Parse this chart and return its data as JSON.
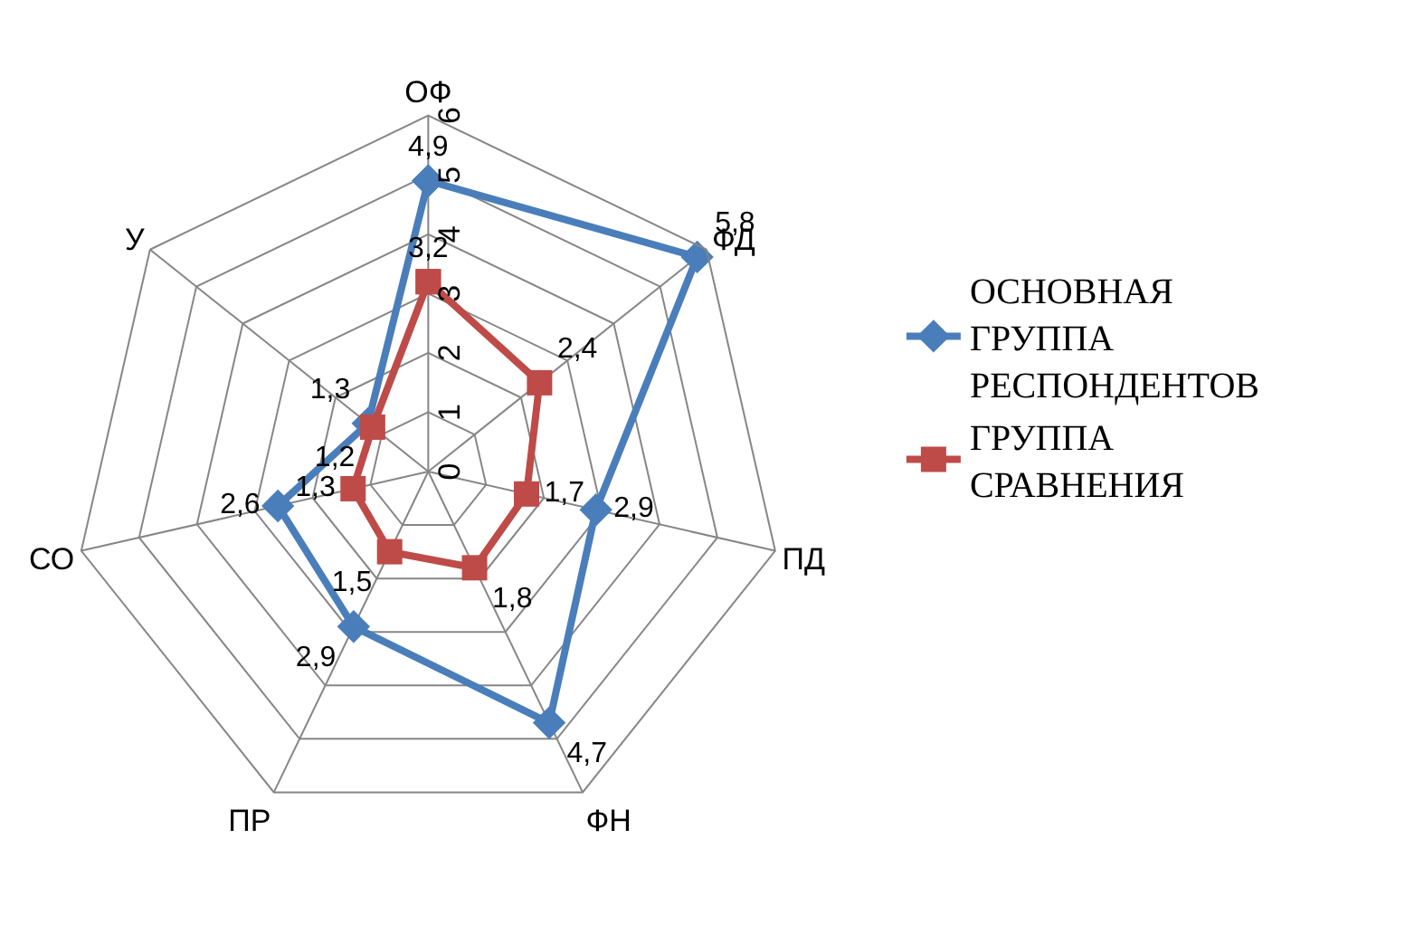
{
  "chart_data": {
    "type": "radar",
    "categories": [
      "ОФ",
      "ФД",
      "ПД",
      "ФН",
      "ПР",
      "СО",
      "У"
    ],
    "series": [
      {
        "name": "ОСНОВНАЯ ГРУППА РЕСПОНДЕНТОВ",
        "color": "#4a7ebb",
        "values": [
          4.9,
          5.8,
          2.9,
          4.7,
          2.9,
          2.6,
          1.3
        ],
        "value_labels": [
          "4,9",
          "5,8",
          "2,9",
          "4,7",
          "2,9",
          "2,6",
          "1,3"
        ]
      },
      {
        "name": "ГРУППА СРАВНЕНИЯ",
        "color": "#be4b48",
        "values": [
          3.2,
          2.4,
          1.7,
          1.8,
          1.5,
          1.3,
          1.2
        ],
        "value_labels": [
          "3,2",
          "2,4",
          "1,7",
          "1,8",
          "1,5",
          "1,3",
          "1,2"
        ]
      }
    ],
    "ylim": [
      0,
      6
    ],
    "yticks": [
      0,
      1,
      2,
      3,
      4,
      5,
      6
    ],
    "legend": "right",
    "grid": true
  }
}
